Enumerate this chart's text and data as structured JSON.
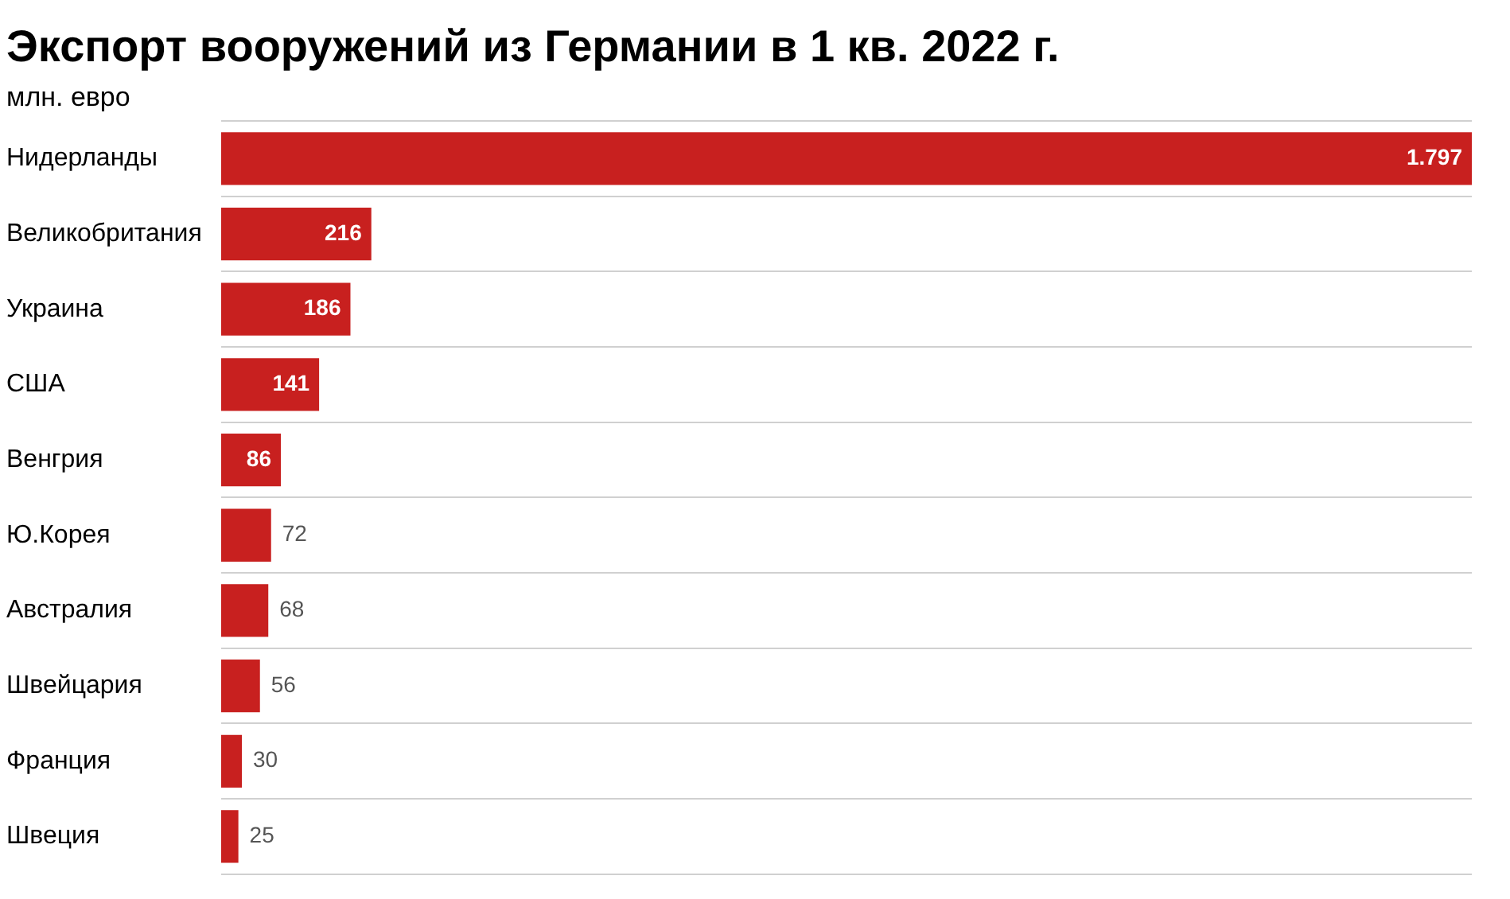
{
  "chart_data": {
    "type": "bar",
    "orientation": "horizontal",
    "title": "Экспорт вооружений из Германии в 1 кв. 2022 г.",
    "subtitle": "млн. евро",
    "categories": [
      "Нидерланды",
      "Великобритания",
      "Украина",
      "США",
      "Венгрия",
      "Ю.Корея",
      "Австралия",
      "Швейцария",
      "Франция",
      "Швеция"
    ],
    "values": [
      1797,
      216,
      186,
      141,
      86,
      72,
      68,
      56,
      30,
      25
    ],
    "value_labels": [
      "1.797",
      "216",
      "186",
      "141",
      "86",
      "72",
      "68",
      "56",
      "30",
      "25"
    ],
    "color": "#c8201f",
    "grid": "y",
    "tick_labels": "y"
  }
}
